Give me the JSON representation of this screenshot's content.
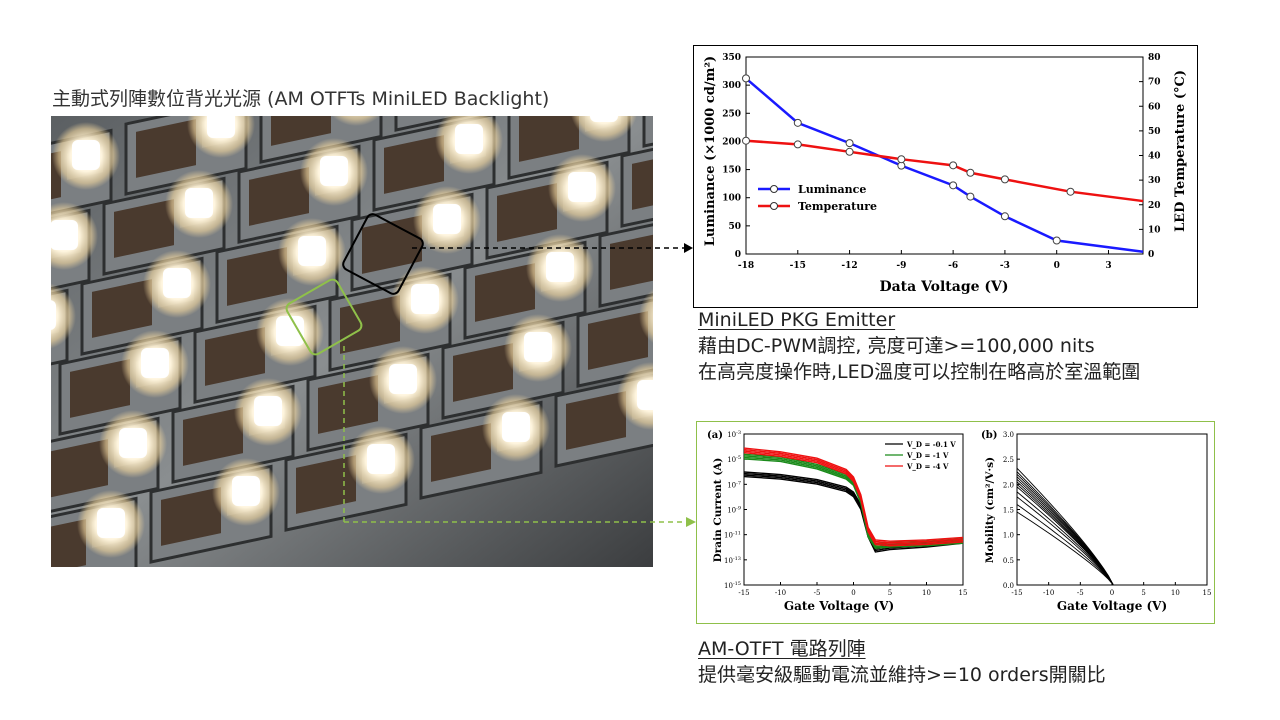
{
  "photo": {
    "title": "主動式列陣數位背光光源 (AM OTFTs MiniLED Backlight)"
  },
  "luminance_chart": {
    "chart_data": {
      "type": "line",
      "xlabel": "Data Voltage (V)",
      "ylabel": "Luminance (×1000 cd/m²)",
      "y2label": "LED Temperature (°C)",
      "xlim": [
        -18,
        5
      ],
      "ylim": [
        0,
        350
      ],
      "y2lim": [
        0,
        80
      ],
      "x_ticks": [
        "-18",
        "-15",
        "-12",
        "-9",
        "-6",
        "-3",
        "0",
        "3"
      ],
      "y_ticks": [
        "0",
        "50",
        "100",
        "150",
        "200",
        "250",
        "300",
        "350"
      ],
      "y2_ticks": [
        "0",
        "10",
        "20",
        "30",
        "40",
        "50",
        "60",
        "70",
        "80"
      ],
      "legend_position": "middle-left",
      "series": [
        {
          "name": "Luminance",
          "color": "#1a1aff",
          "axis": "left",
          "x": [
            -18,
            -15,
            -12,
            -9,
            -6,
            -5,
            -3,
            0,
            5
          ],
          "y": [
            312,
            233,
            197,
            157,
            122,
            102,
            67,
            24,
            4
          ],
          "markers": [
            true,
            true,
            true,
            true,
            true,
            true,
            true,
            true,
            false
          ]
        },
        {
          "name": "Temperature",
          "color": "#ee1111",
          "axis": "right",
          "x": [
            -18,
            -15,
            -12,
            -9,
            -6,
            -5,
            -3,
            0.8,
            5
          ],
          "y": [
            46,
            44.5,
            41.5,
            38.5,
            36,
            33,
            30.3,
            25.3,
            21.5
          ],
          "markers": [
            true,
            true,
            true,
            true,
            true,
            true,
            true,
            true,
            false
          ]
        }
      ]
    }
  },
  "captions": {
    "minled_title": "MiniLED PKG Emitter",
    "minled_line1": "藉由DC-PWM調控, 亮度可達>=100,000 nits",
    "minled_line2": "在高亮度操作時,LED溫度可以控制在略高於室溫範圍",
    "otft_title": "AM-OTFT 電路列陣",
    "otft_line1": "提供毫安級驅動電流並維持>=10 orders開關比"
  },
  "tft_charts": {
    "chart_data": [
      {
        "type": "line",
        "panel_label": "(a)",
        "xlabel": "Gate Voltage (V)",
        "ylabel": "Drain Current (A)",
        "xlim": [
          -15,
          15
        ],
        "log_y": true,
        "ylim_exp": [
          -15,
          -3
        ],
        "x_ticks": [
          "-15",
          "-10",
          "-5",
          "0",
          "5",
          "10",
          "15"
        ],
        "y_tick_exps": [
          -3,
          -5,
          -7,
          -9,
          -11,
          -13,
          -15
        ],
        "legend_position": "top-right",
        "series": [
          {
            "name": "V_D = -0.1 V",
            "color": "#000000",
            "x": [
              -15,
              -10,
              -5,
              -1,
              0,
              1,
              2,
              3,
              5,
              10,
              15
            ],
            "log_y": [
              -6.2,
              -6.4,
              -6.8,
              -7.4,
              -7.8,
              -8.8,
              -11.0,
              -12.2,
              -12.0,
              -11.8,
              -11.5
            ]
          },
          {
            "name": "V_D = -1 V",
            "color": "#1a8a1a",
            "x": [
              -15,
              -10,
              -5,
              -1,
              0,
              1,
              2,
              3,
              5,
              10,
              15
            ],
            "log_y": [
              -4.8,
              -5.0,
              -5.6,
              -6.4,
              -6.9,
              -8.3,
              -11.0,
              -11.9,
              -11.8,
              -11.7,
              -11.5
            ]
          },
          {
            "name": "V_D = -4 V",
            "color": "#ee1111",
            "x": [
              -15,
              -10,
              -5,
              -1,
              0,
              1,
              2,
              3,
              5,
              10,
              15
            ],
            "log_y": [
              -4.3,
              -4.6,
              -5.1,
              -6.0,
              -6.6,
              -8.0,
              -10.6,
              -11.6,
              -11.7,
              -11.6,
              -11.4
            ]
          }
        ]
      },
      {
        "type": "line",
        "panel_label": "(b)",
        "xlabel": "Gate Voltage (V)",
        "ylabel": "Mobility (cm²/V·s)",
        "xlim": [
          -15,
          15
        ],
        "ylim": [
          0,
          3.0
        ],
        "x_ticks": [
          "-15",
          "-10",
          "-5",
          "0",
          "5",
          "10",
          "15"
        ],
        "y_ticks": [
          "0.0",
          "0.5",
          "1.0",
          "1.5",
          "2.0",
          "2.5",
          "3.0"
        ],
        "curve_start_values": [
          2.32,
          2.25,
          2.2,
          2.15,
          2.1,
          2.05,
          2.0,
          1.95,
          1.85,
          1.75,
          1.6,
          1.45
        ],
        "curve_end_x": 0.2,
        "color": "#000000"
      }
    ]
  },
  "callouts": {
    "black_box_color": "#000000",
    "green_box_color": "#8fc04a"
  }
}
